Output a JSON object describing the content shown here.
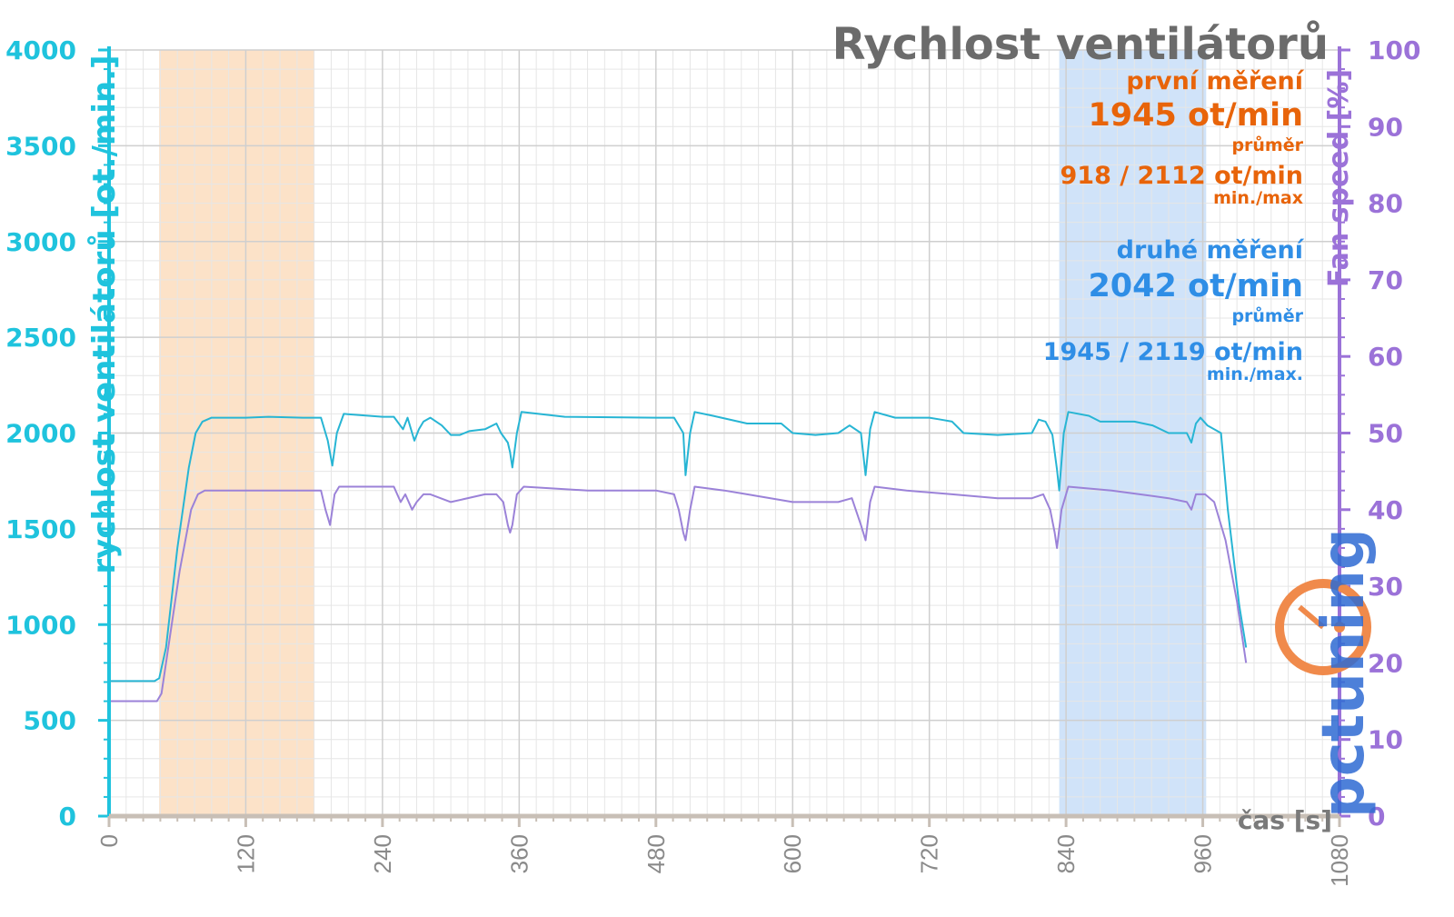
{
  "chart_data": {
    "type": "line",
    "title": "Rychlost ventilátorů",
    "xlabel": "čas [s]",
    "ylabel": "rychlost ventilátorů [ot./min.]",
    "y2label": "Fan speed [%]",
    "xlim": [
      0,
      1080
    ],
    "ylim": [
      0,
      4000
    ],
    "y2lim": [
      0,
      100
    ],
    "x_ticks": [
      0,
      120,
      240,
      360,
      480,
      600,
      720,
      840,
      960,
      1080
    ],
    "y_ticks": [
      0,
      500,
      1000,
      1500,
      2000,
      2500,
      3000,
      3500,
      4000
    ],
    "y2_ticks": [
      0,
      10,
      20,
      30,
      40,
      50,
      60,
      70,
      80,
      90,
      100
    ],
    "grid": true,
    "highlight_regions": [
      {
        "x": [
          44,
          180
        ],
        "color": "#fbd5b0"
      },
      {
        "x": [
          834,
          963
        ],
        "color": "#bcd7f7"
      }
    ],
    "series": [
      {
        "axis": "left",
        "color": "#27b5d4",
        "points": [
          [
            0,
            705
          ],
          [
            40,
            705
          ],
          [
            44,
            720
          ],
          [
            50,
            880
          ],
          [
            60,
            1400
          ],
          [
            70,
            1820
          ],
          [
            76,
            2000
          ],
          [
            82,
            2060
          ],
          [
            90,
            2080
          ],
          [
            120,
            2080
          ],
          [
            140,
            2085
          ],
          [
            170,
            2080
          ],
          [
            186,
            2080
          ],
          [
            192,
            1960
          ],
          [
            196,
            1830
          ],
          [
            200,
            2000
          ],
          [
            206,
            2100
          ],
          [
            240,
            2085
          ],
          [
            250,
            2085
          ],
          [
            258,
            2020
          ],
          [
            262,
            2080
          ],
          [
            268,
            1960
          ],
          [
            272,
            2020
          ],
          [
            276,
            2060
          ],
          [
            282,
            2080
          ],
          [
            292,
            2040
          ],
          [
            300,
            1990
          ],
          [
            308,
            1990
          ],
          [
            316,
            2010
          ],
          [
            330,
            2020
          ],
          [
            340,
            2050
          ],
          [
            344,
            2000
          ],
          [
            350,
            1950
          ],
          [
            352,
            1900
          ],
          [
            354,
            1820
          ],
          [
            358,
            2000
          ],
          [
            362,
            2110
          ],
          [
            400,
            2085
          ],
          [
            480,
            2080
          ],
          [
            496,
            2080
          ],
          [
            500,
            2040
          ],
          [
            504,
            2000
          ],
          [
            506,
            1780
          ],
          [
            510,
            2000
          ],
          [
            514,
            2110
          ],
          [
            530,
            2090
          ],
          [
            560,
            2050
          ],
          [
            590,
            2050
          ],
          [
            600,
            2000
          ],
          [
            620,
            1990
          ],
          [
            640,
            2000
          ],
          [
            650,
            2040
          ],
          [
            660,
            2000
          ],
          [
            664,
            1780
          ],
          [
            668,
            2020
          ],
          [
            672,
            2110
          ],
          [
            690,
            2080
          ],
          [
            720,
            2080
          ],
          [
            730,
            2070
          ],
          [
            740,
            2060
          ],
          [
            750,
            2000
          ],
          [
            780,
            1990
          ],
          [
            810,
            2000
          ],
          [
            816,
            2070
          ],
          [
            822,
            2060
          ],
          [
            828,
            1990
          ],
          [
            830,
            1900
          ],
          [
            832,
            1810
          ],
          [
            834,
            1700
          ],
          [
            838,
            2000
          ],
          [
            842,
            2110
          ],
          [
            860,
            2090
          ],
          [
            870,
            2060
          ],
          [
            900,
            2060
          ],
          [
            916,
            2040
          ],
          [
            930,
            2000
          ],
          [
            946,
            2000
          ],
          [
            950,
            1950
          ],
          [
            954,
            2050
          ],
          [
            958,
            2080
          ],
          [
            964,
            2040
          ],
          [
            976,
            2000
          ],
          [
            982,
            1600
          ],
          [
            992,
            1100
          ],
          [
            998,
            880
          ]
        ]
      },
      {
        "axis": "right",
        "color": "#9b82d8",
        "points": [
          [
            0,
            15
          ],
          [
            42,
            15
          ],
          [
            46,
            16
          ],
          [
            52,
            22
          ],
          [
            62,
            32
          ],
          [
            72,
            40
          ],
          [
            78,
            42
          ],
          [
            84,
            42.5
          ],
          [
            90,
            42.5
          ],
          [
            120,
            42.5
          ],
          [
            150,
            42.5
          ],
          [
            170,
            42.5
          ],
          [
            186,
            42.5
          ],
          [
            190,
            40
          ],
          [
            194,
            38
          ],
          [
            198,
            42
          ],
          [
            202,
            43
          ],
          [
            240,
            43
          ],
          [
            250,
            43
          ],
          [
            256,
            41
          ],
          [
            260,
            42
          ],
          [
            266,
            40
          ],
          [
            270,
            41
          ],
          [
            276,
            42
          ],
          [
            282,
            42
          ],
          [
            300,
            41
          ],
          [
            330,
            42
          ],
          [
            340,
            42
          ],
          [
            346,
            41
          ],
          [
            350,
            38
          ],
          [
            352,
            37
          ],
          [
            354,
            38
          ],
          [
            358,
            42
          ],
          [
            364,
            43
          ],
          [
            420,
            42.5
          ],
          [
            480,
            42.5
          ],
          [
            496,
            42
          ],
          [
            500,
            40
          ],
          [
            504,
            37
          ],
          [
            506,
            36
          ],
          [
            510,
            40
          ],
          [
            514,
            43
          ],
          [
            540,
            42.5
          ],
          [
            560,
            42
          ],
          [
            600,
            41
          ],
          [
            620,
            41
          ],
          [
            640,
            41
          ],
          [
            652,
            41.5
          ],
          [
            660,
            38
          ],
          [
            664,
            36
          ],
          [
            668,
            41
          ],
          [
            672,
            43
          ],
          [
            700,
            42.5
          ],
          [
            740,
            42
          ],
          [
            780,
            41.5
          ],
          [
            810,
            41.5
          ],
          [
            820,
            42
          ],
          [
            826,
            40
          ],
          [
            830,
            37
          ],
          [
            832,
            35
          ],
          [
            836,
            40
          ],
          [
            842,
            43
          ],
          [
            880,
            42.5
          ],
          [
            930,
            41.5
          ],
          [
            946,
            41
          ],
          [
            950,
            40
          ],
          [
            954,
            42
          ],
          [
            962,
            42
          ],
          [
            970,
            41
          ],
          [
            980,
            36
          ],
          [
            990,
            28
          ],
          [
            998,
            20
          ]
        ]
      }
    ],
    "annotations": {
      "first": {
        "title": "první měření",
        "avg": "1945 ot/min",
        "avg_label": "průměr",
        "minmax": "918 / 2112 ot/min",
        "minmax_label": "min./max",
        "color": "#e8640a"
      },
      "second": {
        "title": "druhé měření",
        "avg": "2042 ot/min",
        "avg_label": "průměr",
        "minmax": "1945 / 2119 ot/min",
        "minmax_label": "min./max.",
        "color": "#2f8ee6"
      }
    },
    "colors": {
      "left_axis": "#1fc3dd",
      "right_axis": "#9b72d8",
      "x_axis": "#c8bfb6",
      "title": "#6b6b6b"
    }
  },
  "logo": {
    "text": "pctuning"
  }
}
